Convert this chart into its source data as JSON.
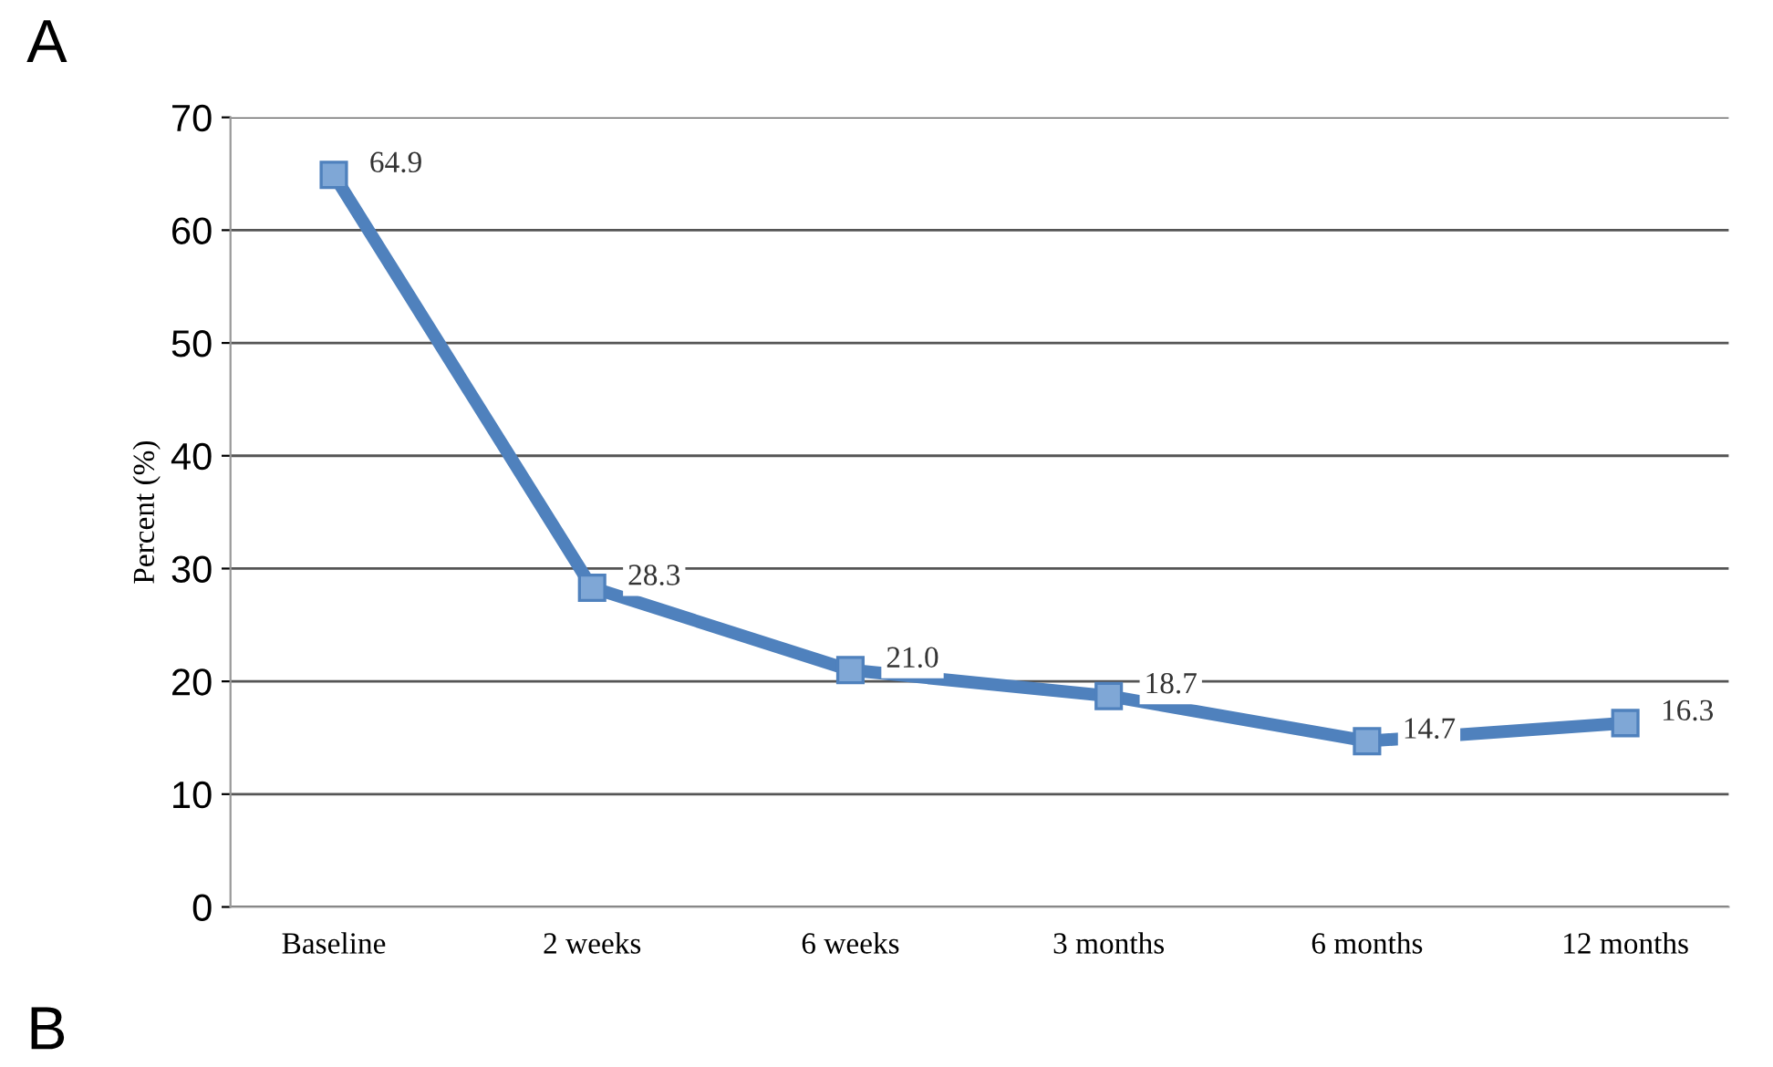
{
  "chart_data": {
    "type": "line",
    "title": "A",
    "ylabel": "Percent (%)",
    "categories": [
      "Baseline",
      "2 weeks",
      "6 weeks",
      "3 months",
      "6 months",
      "12 months"
    ],
    "series": [
      {
        "color": "#4f81bd",
        "values": [
          64.9,
          28.3,
          21.0,
          18.7,
          14.7,
          16.3
        ]
      }
    ],
    "value_labels": [
      "64.9",
      "28.3",
      "21.0",
      "18.7",
      "14.7",
      "16.3"
    ],
    "ylim": [
      0,
      70
    ],
    "yticks": [
      0,
      10,
      20,
      30,
      40,
      50,
      60,
      70
    ],
    "grid": "y",
    "legend": false,
    "marker": "square",
    "line_style": "solid",
    "annotations": [
      "B"
    ]
  }
}
